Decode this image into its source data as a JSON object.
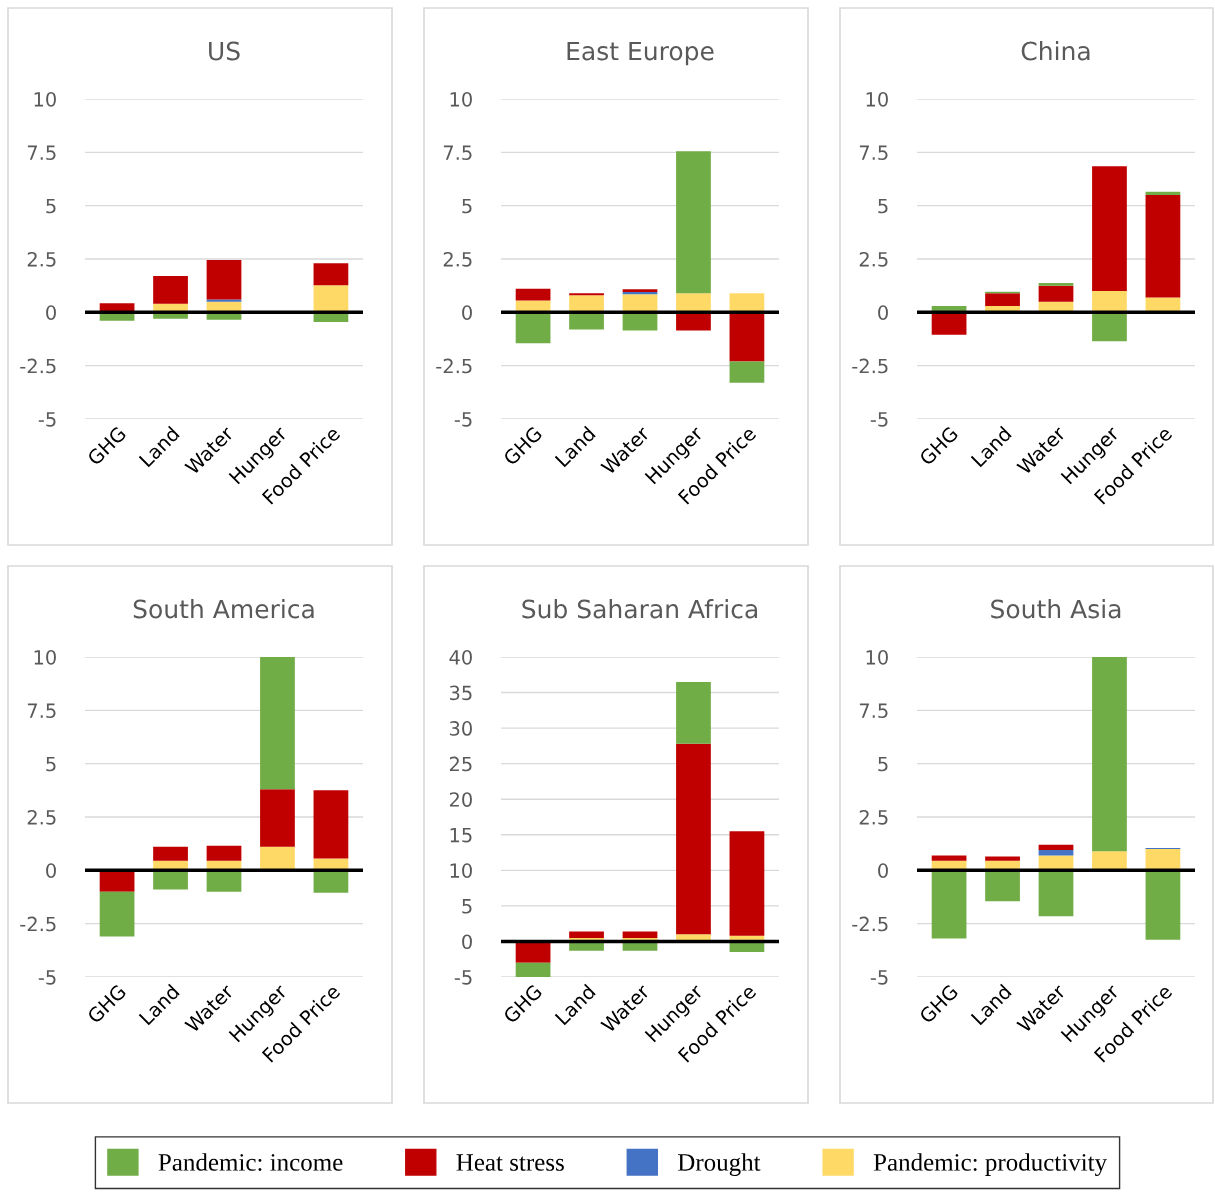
{
  "chart_data": [
    {
      "type": "bar",
      "stacked": true,
      "title": "US",
      "categories": [
        "GHG",
        "Land",
        "Water",
        "Hunger",
        "Food Price"
      ],
      "ylim": [
        -5,
        10
      ],
      "yticks": [
        -5,
        -2.5,
        0,
        2.5,
        5,
        7.5,
        10
      ],
      "grid": "y",
      "ref_lines": [
        {
          "axis": "y",
          "value": 0,
          "color": "#000000"
        }
      ],
      "series": [
        {
          "color": "#ffd966",
          "values": [
            null,
            0.4,
            0.5,
            0,
            1.27
          ]
        },
        {
          "color": "#4472c4",
          "values": [
            0,
            0,
            0.1,
            0,
            0
          ]
        },
        {
          "color": "#c00000",
          "values": [
            0.42,
            1.3,
            1.85,
            0,
            1.03
          ]
        },
        {
          "color": "#70ad47",
          "values": [
            -0.4,
            -0.3,
            -0.35,
            0,
            -0.45
          ]
        }
      ]
    },
    {
      "type": "bar",
      "stacked": true,
      "title": "East Europe",
      "categories": [
        "GHG",
        "Land",
        "Water",
        "Hunger",
        "Food Price"
      ],
      "ylim": [
        -5,
        10
      ],
      "yticks": [
        -5,
        -2.5,
        0,
        2.5,
        5,
        7.5,
        10
      ],
      "grid": "y",
      "ref_lines": [
        {
          "axis": "y",
          "value": 0,
          "color": "#000000"
        }
      ],
      "series": [
        {
          "color": "#ffd966",
          "values": [
            0.55,
            0.8,
            0.85,
            0.9,
            0.9
          ]
        },
        {
          "color": "#4472c4",
          "values": [
            0,
            0,
            0.1,
            0,
            0
          ]
        },
        {
          "color": "#c00000",
          "values": [
            0.55,
            0.1,
            0.13,
            -0.85,
            -2.3
          ]
        },
        {
          "color": "#70ad47",
          "values": [
            -1.45,
            -0.8,
            -0.85,
            6.65,
            -1.0
          ]
        }
      ]
    },
    {
      "type": "bar",
      "stacked": true,
      "title": "China",
      "categories": [
        "GHG",
        "Land",
        "Water",
        "Hunger",
        "Food Price"
      ],
      "ylim": [
        -5,
        10
      ],
      "yticks": [
        -5,
        -2.5,
        0,
        2.5,
        5,
        7.5,
        10
      ],
      "grid": "y",
      "ref_lines": [
        {
          "axis": "y",
          "value": 0,
          "color": "#000000"
        }
      ],
      "series": [
        {
          "color": "#ffd966",
          "values": [
            0,
            0.3,
            0.5,
            1.0,
            0.7
          ]
        },
        {
          "color": "#4472c4",
          "values": [
            0,
            0,
            0,
            0,
            0
          ]
        },
        {
          "color": "#c00000",
          "values": [
            -1.05,
            0.6,
            0.75,
            5.85,
            4.8
          ]
        },
        {
          "color": "#70ad47",
          "values": [
            0.3,
            0.07,
            0.13,
            -1.35,
            0.15
          ]
        }
      ]
    },
    {
      "type": "bar",
      "stacked": true,
      "title": "South America",
      "categories": [
        "GHG",
        "Land",
        "Water",
        "Hunger",
        "Food Price"
      ],
      "ylim": [
        -5,
        10
      ],
      "yticks": [
        -5,
        -2.5,
        0,
        2.5,
        5,
        7.5,
        10
      ],
      "grid": "y",
      "ref_lines": [
        {
          "axis": "y",
          "value": 0,
          "color": "#000000"
        }
      ],
      "series": [
        {
          "color": "#ffd966",
          "values": [
            null,
            0.45,
            0.45,
            1.1,
            0.55
          ]
        },
        {
          "color": "#4472c4",
          "values": [
            0,
            0,
            0,
            0,
            0
          ]
        },
        {
          "color": "#c00000",
          "values": [
            -1.0,
            0.65,
            0.7,
            2.7,
            3.2
          ]
        },
        {
          "color": "#70ad47",
          "values": [
            -2.1,
            -0.9,
            -1.0,
            6.2,
            -1.05
          ]
        }
      ]
    },
    {
      "type": "bar",
      "stacked": true,
      "title": "Sub Saharan Africa",
      "categories": [
        "GHG",
        "Land",
        "Water",
        "Hunger",
        "Food Price"
      ],
      "ylim": [
        -5,
        40
      ],
      "yticks": [
        -5,
        0,
        5,
        10,
        15,
        20,
        25,
        30,
        35,
        40
      ],
      "grid": "y",
      "ref_lines": [
        {
          "axis": "y",
          "value": 0,
          "color": "#000000"
        }
      ],
      "series": [
        {
          "color": "#ffd966",
          "values": [
            0,
            0.5,
            0.5,
            1.0,
            0.8
          ]
        },
        {
          "color": "#4472c4",
          "values": [
            0,
            0,
            0,
            0,
            0
          ]
        },
        {
          "color": "#c00000",
          "values": [
            -3.0,
            0.9,
            0.9,
            26.8,
            14.7
          ]
        },
        {
          "color": "#70ad47",
          "values": [
            -2.3,
            -1.3,
            -1.3,
            8.7,
            -1.5
          ]
        }
      ]
    },
    {
      "type": "bar",
      "stacked": true,
      "title": "South Asia",
      "categories": [
        "GHG",
        "Land",
        "Water",
        "Hunger",
        "Food Price"
      ],
      "ylim": [
        -5,
        10
      ],
      "yticks": [
        -5,
        -2.5,
        0,
        2.5,
        5,
        7.5,
        10
      ],
      "grid": "y",
      "ref_lines": [
        {
          "axis": "y",
          "value": 0,
          "color": "#000000"
        }
      ],
      "legend": "bottom",
      "series": [
        {
          "name": "Pandemic: productivity",
          "color": "#ffd966",
          "values": [
            0.45,
            0.45,
            0.7,
            0.9,
            1.0
          ]
        },
        {
          "name": "Drought",
          "color": "#4472c4",
          "values": [
            0,
            0,
            0.25,
            0,
            0.05
          ]
        },
        {
          "name": "Heat stress",
          "color": "#c00000",
          "values": [
            0.25,
            0.2,
            0.25,
            null,
            0
          ]
        },
        {
          "name": "Pandemic: income",
          "color": "#70ad47",
          "values": [
            -3.2,
            -1.45,
            -2.15,
            9.1,
            -3.25
          ]
        }
      ]
    }
  ]
}
